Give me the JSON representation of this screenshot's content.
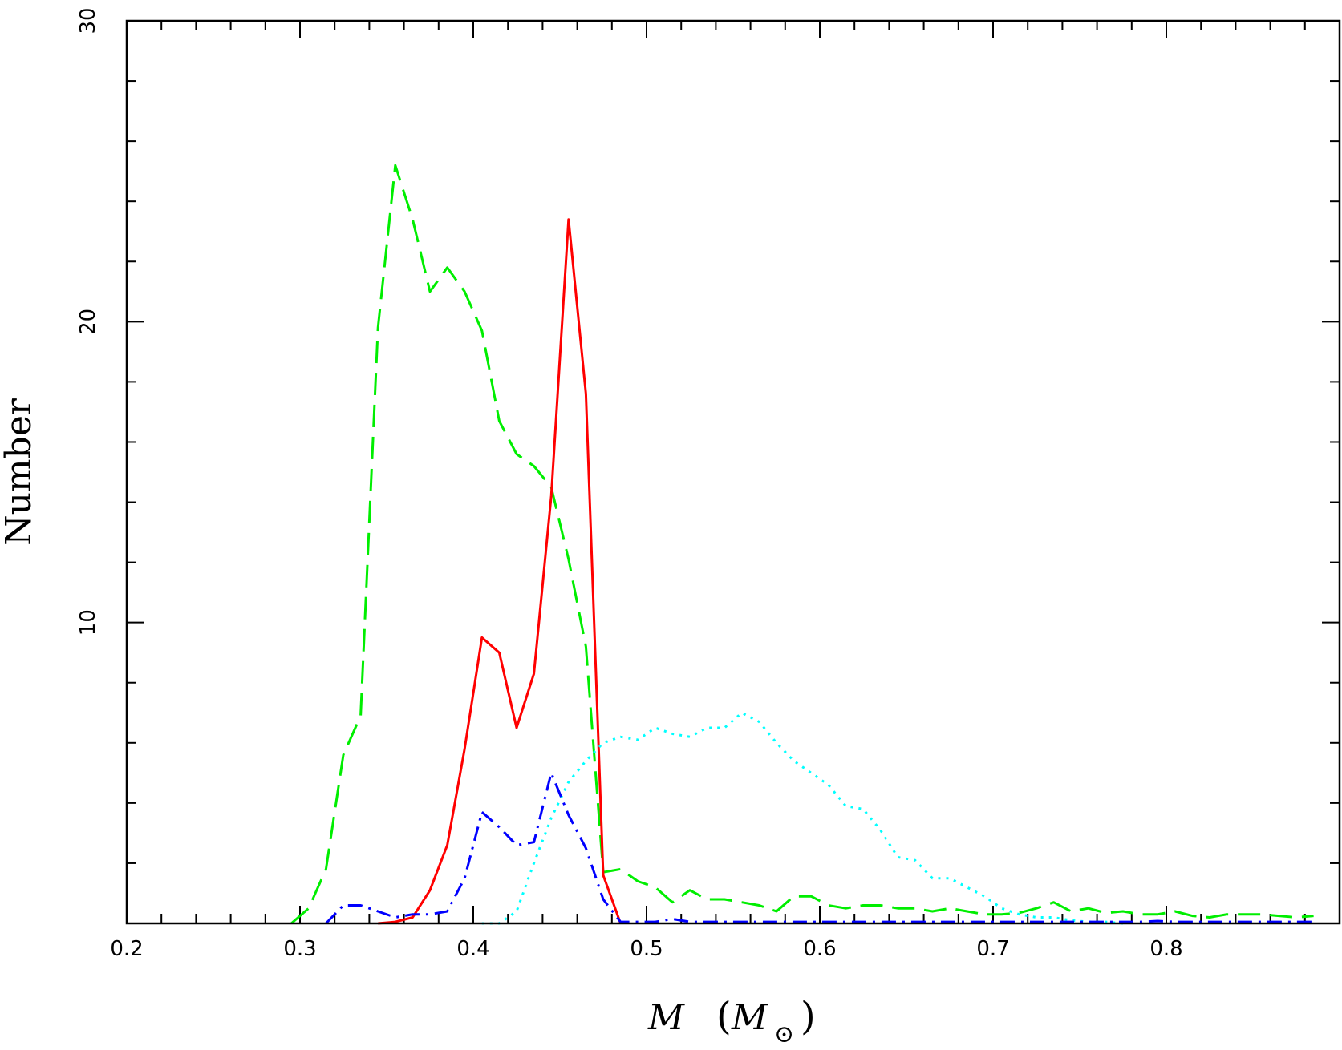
{
  "chart_data": {
    "type": "line",
    "xlabel": {
      "symbol": "M",
      "unit_open": "(",
      "unit_symbol": "M",
      "unit_subscript": "⊙",
      "unit_close": ")"
    },
    "ylabel": "Number",
    "xlim": [
      0.2,
      0.9
    ],
    "ylim": [
      0,
      30
    ],
    "x_ticks": [
      0.2,
      0.3,
      0.4,
      0.5,
      0.6,
      0.7,
      0.8
    ],
    "x_tick_labels": [
      "0.2",
      "0.3",
      "0.4",
      "0.5",
      "0.6",
      "0.7",
      "0.8"
    ],
    "y_ticks": [
      10,
      20,
      30
    ],
    "y_tick_labels": [
      "10",
      "20",
      "30"
    ],
    "grid": false,
    "series": [
      {
        "color": "#00ee00",
        "style": "dashed",
        "x": [
          0.295,
          0.305,
          0.315,
          0.325,
          0.335,
          0.345,
          0.355,
          0.365,
          0.375,
          0.385,
          0.395,
          0.405,
          0.415,
          0.425,
          0.435,
          0.445,
          0.455,
          0.465,
          0.475,
          0.485,
          0.495,
          0.505,
          0.515,
          0.525,
          0.535,
          0.545,
          0.555,
          0.565,
          0.575,
          0.585,
          0.595,
          0.605,
          0.615,
          0.625,
          0.635,
          0.645,
          0.655,
          0.665,
          0.675,
          0.685,
          0.695,
          0.705,
          0.715,
          0.725,
          0.735,
          0.745,
          0.755,
          0.765,
          0.775,
          0.785,
          0.795,
          0.805,
          0.815,
          0.825,
          0.835,
          0.845,
          0.855,
          0.865,
          0.875,
          0.885
        ],
        "y": [
          0,
          0.5,
          1.8,
          5.6,
          6.9,
          19.8,
          25.2,
          23.4,
          21.0,
          21.8,
          21.0,
          19.7,
          16.7,
          15.6,
          15.2,
          14.5,
          12.1,
          9.2,
          1.7,
          1.8,
          1.4,
          1.2,
          0.7,
          1.1,
          0.8,
          0.8,
          0.7,
          0.6,
          0.4,
          0.9,
          0.9,
          0.6,
          0.5,
          0.6,
          0.6,
          0.5,
          0.5,
          0.4,
          0.5,
          0.4,
          0.3,
          0.3,
          0.35,
          0.5,
          0.7,
          0.4,
          0.5,
          0.35,
          0.4,
          0.3,
          0.3,
          0.4,
          0.25,
          0.2,
          0.3,
          0.3,
          0.3,
          0.25,
          0.2,
          0.25
        ]
      },
      {
        "color": "#ff0000",
        "style": "solid",
        "x": [
          0.345,
          0.355,
          0.365,
          0.375,
          0.385,
          0.395,
          0.405,
          0.415,
          0.425,
          0.435,
          0.445,
          0.455,
          0.465,
          0.475,
          0.485
        ],
        "y": [
          0,
          0.05,
          0.2,
          1.1,
          2.6,
          5.8,
          9.5,
          9.0,
          6.5,
          8.3,
          14.2,
          23.4,
          17.6,
          1.6,
          0
        ]
      },
      {
        "color": "#00ffff",
        "style": "dotted",
        "x": [
          0.405,
          0.415,
          0.425,
          0.435,
          0.445,
          0.455,
          0.465,
          0.475,
          0.485,
          0.495,
          0.505,
          0.515,
          0.525,
          0.535,
          0.545,
          0.555,
          0.565,
          0.575,
          0.585,
          0.595,
          0.605,
          0.615,
          0.625,
          0.635,
          0.645,
          0.655,
          0.665,
          0.675,
          0.685,
          0.695,
          0.705,
          0.715,
          0.725,
          0.735,
          0.745,
          0.755,
          0.765,
          0.775
        ],
        "y": [
          0,
          0,
          0.4,
          2.0,
          3.5,
          4.7,
          5.4,
          6.0,
          6.2,
          6.1,
          6.5,
          6.3,
          6.2,
          6.5,
          6.5,
          7.0,
          6.7,
          6.0,
          5.4,
          5.0,
          4.6,
          3.9,
          3.8,
          3.1,
          2.2,
          2.1,
          1.5,
          1.5,
          1.2,
          0.9,
          0.5,
          0.3,
          0.2,
          0.2,
          0.1,
          0.05,
          0.05,
          0
        ]
      },
      {
        "color": "#0000ff",
        "style": "dash-dot",
        "x": [
          0.315,
          0.325,
          0.335,
          0.345,
          0.355,
          0.365,
          0.375,
          0.385,
          0.395,
          0.405,
          0.415,
          0.425,
          0.435,
          0.445,
          0.455,
          0.465,
          0.475,
          0.485,
          0.495,
          0.505,
          0.515,
          0.525,
          0.535,
          0.545,
          0.555,
          0.565,
          0.575,
          0.585,
          0.595,
          0.605,
          0.615,
          0.625,
          0.635,
          0.645,
          0.655,
          0.665,
          0.675,
          0.685,
          0.695,
          0.705,
          0.715,
          0.725,
          0.735,
          0.745,
          0.755,
          0.765,
          0.775,
          0.785,
          0.795,
          0.805,
          0.815,
          0.825,
          0.835,
          0.845,
          0.855,
          0.865,
          0.875,
          0.885
        ],
        "y": [
          0,
          0.6,
          0.6,
          0.4,
          0.2,
          0.3,
          0.3,
          0.4,
          1.5,
          3.7,
          3.2,
          2.6,
          2.7,
          5.0,
          3.6,
          2.5,
          0.8,
          0.05,
          0.05,
          0.05,
          0.15,
          0.05,
          0.05,
          0.05,
          0.05,
          0.05,
          0.05,
          0.05,
          0.05,
          0.05,
          0.05,
          0.05,
          0.05,
          0.05,
          0.05,
          0.05,
          0.05,
          0.05,
          0.05,
          0.05,
          0.05,
          0.05,
          0.05,
          0.05,
          0.05,
          0.05,
          0.05,
          0.05,
          0.08,
          0.05,
          0.05,
          0.05,
          0.05,
          0.05,
          0.05,
          0.05,
          0.05,
          0.05
        ]
      }
    ]
  }
}
